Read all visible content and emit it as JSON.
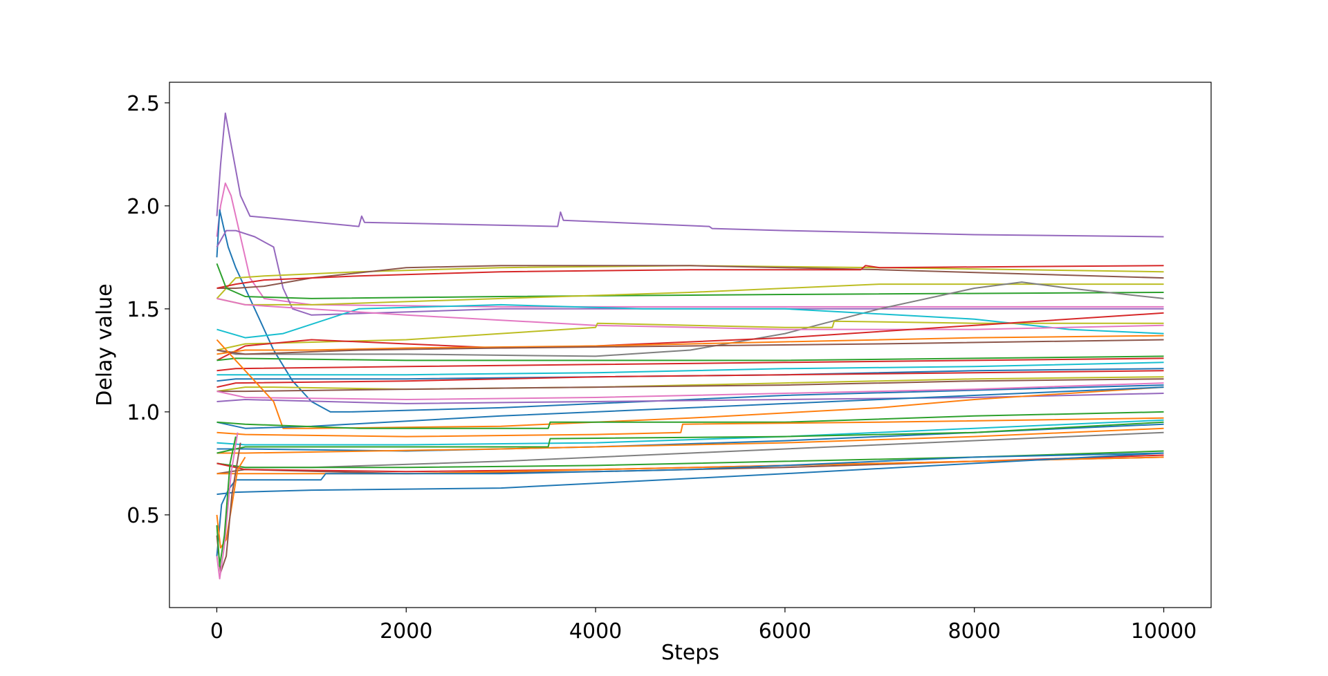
{
  "chart_data": {
    "type": "line",
    "title": "",
    "xlabel": "Steps",
    "ylabel": "Delay value",
    "xlim": [
      -500,
      10500
    ],
    "ylim": [
      0.05,
      2.6
    ],
    "x_ticks": [
      0,
      2000,
      4000,
      6000,
      8000,
      10000
    ],
    "x_tick_labels": [
      "0",
      "2000",
      "4000",
      "6000",
      "8000",
      "10000"
    ],
    "y_ticks": [
      0.5,
      1.0,
      1.5,
      2.0,
      2.5
    ],
    "y_tick_labels": [
      "0.5",
      "1.0",
      "1.5",
      "2.0",
      "2.5"
    ],
    "grid": false,
    "legend": "none",
    "palette": [
      "#1f77b4",
      "#ff7f0e",
      "#2ca02c",
      "#d62728",
      "#9467bd",
      "#8c564b",
      "#e377c2",
      "#7f7f7f",
      "#bcbd22",
      "#17becf"
    ],
    "series": [
      {
        "color": "#9467bd",
        "x": [
          0,
          40,
          90,
          150,
          250,
          350,
          1500,
          1530,
          1560,
          3600,
          3630,
          3660,
          5200,
          5230,
          6000,
          8000,
          10000
        ],
        "y": [
          1.95,
          2.2,
          2.45,
          2.3,
          2.05,
          1.95,
          1.9,
          1.95,
          1.92,
          1.9,
          1.97,
          1.93,
          1.9,
          1.89,
          1.88,
          1.86,
          1.85
        ]
      },
      {
        "color": "#e377c2",
        "x": [
          0,
          40,
          90,
          150,
          250,
          350,
          500,
          1000,
          3000,
          6000,
          10000
        ],
        "y": [
          1.85,
          2.0,
          2.11,
          2.05,
          1.85,
          1.65,
          1.55,
          1.52,
          1.51,
          1.51,
          1.51
        ]
      },
      {
        "color": "#1f77b4",
        "x": [
          0,
          30,
          70,
          120,
          200,
          300,
          450,
          600,
          800,
          1000,
          1200,
          1400,
          3000,
          6000,
          10000
        ],
        "y": [
          1.75,
          1.98,
          1.9,
          1.8,
          1.7,
          1.6,
          1.45,
          1.3,
          1.15,
          1.05,
          1.0,
          1.0,
          1.02,
          1.08,
          1.13
        ]
      },
      {
        "color": "#9467bd",
        "x": [
          0,
          100,
          200,
          400,
          600,
          700,
          800,
          1000,
          3000,
          6000,
          10000
        ],
        "y": [
          1.8,
          1.88,
          1.88,
          1.85,
          1.8,
          1.6,
          1.5,
          1.47,
          1.5,
          1.5,
          1.5
        ]
      },
      {
        "color": "#bcbd22",
        "x": [
          0,
          200,
          500,
          1500,
          3000,
          5000,
          7000,
          10000
        ],
        "y": [
          1.55,
          1.65,
          1.66,
          1.68,
          1.7,
          1.71,
          1.7,
          1.68
        ]
      },
      {
        "color": "#8c564b",
        "x": [
          0,
          200,
          500,
          1000,
          2000,
          3000,
          5000,
          7000,
          10000
        ],
        "y": [
          1.6,
          1.6,
          1.61,
          1.65,
          1.7,
          1.71,
          1.71,
          1.69,
          1.65
        ]
      },
      {
        "color": "#d62728",
        "x": [
          0,
          200,
          500,
          1500,
          3000,
          5000,
          6800,
          6850,
          7000,
          10000
        ],
        "y": [
          1.6,
          1.62,
          1.64,
          1.66,
          1.68,
          1.69,
          1.69,
          1.71,
          1.7,
          1.71
        ]
      },
      {
        "color": "#2ca02c",
        "x": [
          0,
          100,
          300,
          1000,
          3000,
          6000,
          10000
        ],
        "y": [
          1.72,
          1.6,
          1.56,
          1.55,
          1.56,
          1.57,
          1.58
        ]
      },
      {
        "color": "#bcbd22",
        "x": [
          0,
          300,
          1000,
          3000,
          5000,
          7000,
          10000
        ],
        "y": [
          1.55,
          1.52,
          1.52,
          1.55,
          1.58,
          1.62,
          1.62
        ]
      },
      {
        "color": "#7f7f7f",
        "x": [
          0,
          200,
          2000,
          4000,
          5000,
          6000,
          7000,
          8000,
          8500,
          9000,
          10000
        ],
        "y": [
          1.3,
          1.28,
          1.28,
          1.27,
          1.3,
          1.38,
          1.5,
          1.6,
          1.63,
          1.6,
          1.55
        ]
      },
      {
        "color": "#17becf",
        "x": [
          0,
          150,
          300,
          500,
          700,
          1500,
          3000,
          4500,
          6000,
          8000,
          9000,
          10000
        ],
        "y": [
          1.4,
          1.38,
          1.36,
          1.37,
          1.38,
          1.5,
          1.52,
          1.5,
          1.5,
          1.45,
          1.4,
          1.38
        ]
      },
      {
        "color": "#e377c2",
        "x": [
          0,
          300,
          2000,
          4000,
          6000,
          8000,
          10000
        ],
        "y": [
          1.55,
          1.52,
          1.47,
          1.42,
          1.4,
          1.4,
          1.42
        ]
      },
      {
        "color": "#bcbd22",
        "x": [
          0,
          300,
          2000,
          3000,
          4000,
          4020,
          6000,
          6500,
          6520,
          8000,
          10000
        ],
        "y": [
          1.3,
          1.33,
          1.35,
          1.38,
          1.41,
          1.43,
          1.41,
          1.41,
          1.44,
          1.43,
          1.43
        ]
      },
      {
        "color": "#d62728",
        "x": [
          0,
          300,
          1000,
          2000,
          3000,
          4000,
          6000,
          8000,
          10000
        ],
        "y": [
          1.25,
          1.32,
          1.35,
          1.33,
          1.31,
          1.32,
          1.36,
          1.42,
          1.48
        ]
      },
      {
        "color": "#ff7f0e",
        "x": [
          0,
          300,
          1000,
          2000,
          4000,
          6000,
          8000,
          10000
        ],
        "y": [
          1.28,
          1.3,
          1.3,
          1.31,
          1.32,
          1.34,
          1.36,
          1.37
        ]
      },
      {
        "color": "#8c564b",
        "x": [
          0,
          300,
          1500,
          3000,
          5000,
          7000,
          10000
        ],
        "y": [
          1.3,
          1.28,
          1.3,
          1.31,
          1.32,
          1.33,
          1.35
        ]
      },
      {
        "color": "#2ca02c",
        "x": [
          0,
          200,
          2000,
          4000,
          6000,
          8000,
          10000
        ],
        "y": [
          1.25,
          1.26,
          1.25,
          1.25,
          1.25,
          1.26,
          1.27
        ]
      },
      {
        "color": "#d62728",
        "x": [
          0,
          200,
          2000,
          4000,
          6000,
          8000,
          10000
        ],
        "y": [
          1.2,
          1.21,
          1.22,
          1.23,
          1.24,
          1.25,
          1.26
        ]
      },
      {
        "color": "#17becf",
        "x": [
          0,
          200,
          2000,
          4000,
          6000,
          8000,
          10000
        ],
        "y": [
          1.18,
          1.18,
          1.18,
          1.19,
          1.21,
          1.22,
          1.24
        ]
      },
      {
        "color": "#1f77b4",
        "x": [
          0,
          200,
          2000,
          4000,
          6000,
          8000,
          10000
        ],
        "y": [
          1.15,
          1.16,
          1.16,
          1.17,
          1.18,
          1.2,
          1.21
        ]
      },
      {
        "color": "#d62728",
        "x": [
          0,
          200,
          2000,
          4000,
          6000,
          8000,
          10000
        ],
        "y": [
          1.12,
          1.14,
          1.15,
          1.17,
          1.18,
          1.19,
          1.2
        ]
      },
      {
        "color": "#bcbd22",
        "x": [
          0,
          300,
          600,
          2000,
          4000,
          6000,
          8000,
          10000
        ],
        "y": [
          1.1,
          1.12,
          1.12,
          1.11,
          1.12,
          1.14,
          1.16,
          1.17
        ]
      },
      {
        "color": "#8c564b",
        "x": [
          0,
          300,
          2000,
          4000,
          6000,
          8000,
          10000
        ],
        "y": [
          1.1,
          1.1,
          1.11,
          1.12,
          1.13,
          1.15,
          1.16
        ]
      },
      {
        "color": "#e377c2",
        "x": [
          0,
          300,
          2000,
          4000,
          6000,
          8000,
          10000
        ],
        "y": [
          1.1,
          1.07,
          1.06,
          1.07,
          1.09,
          1.11,
          1.14
        ]
      },
      {
        "color": "#9467bd",
        "x": [
          0,
          300,
          2000,
          4000,
          6000,
          8000,
          10000
        ],
        "y": [
          1.05,
          1.06,
          1.04,
          1.05,
          1.06,
          1.07,
          1.09
        ]
      },
      {
        "color": "#ff7f0e",
        "x": [
          0,
          200,
          400,
          600,
          700,
          1000,
          3000,
          5000,
          7000,
          8000,
          10000
        ],
        "y": [
          1.35,
          1.25,
          1.15,
          1.05,
          0.92,
          0.92,
          0.93,
          0.97,
          1.02,
          1.06,
          1.12
        ]
      },
      {
        "color": "#1f77b4",
        "x": [
          0,
          300,
          1000,
          3000,
          5000,
          7000,
          9000,
          10000
        ],
        "y": [
          0.95,
          0.92,
          0.93,
          0.98,
          1.02,
          1.06,
          1.1,
          1.12
        ]
      },
      {
        "color": "#2ca02c",
        "x": [
          0,
          300,
          1500,
          3500,
          3520,
          6000,
          8000,
          10000
        ],
        "y": [
          0.95,
          0.94,
          0.92,
          0.92,
          0.95,
          0.95,
          0.98,
          1.0
        ]
      },
      {
        "color": "#ff7f0e",
        "x": [
          0,
          300,
          2000,
          4000,
          4900,
          4920,
          7000,
          10000
        ],
        "y": [
          0.9,
          0.89,
          0.88,
          0.89,
          0.9,
          0.94,
          0.95,
          0.97
        ]
      },
      {
        "color": "#17becf",
        "x": [
          0,
          300,
          2000,
          4000,
          6000,
          8000,
          10000
        ],
        "y": [
          0.85,
          0.84,
          0.84,
          0.85,
          0.88,
          0.92,
          0.96
        ]
      },
      {
        "color": "#1f77b4",
        "x": [
          0,
          300,
          2000,
          4000,
          6000,
          8000,
          10000
        ],
        "y": [
          0.82,
          0.82,
          0.81,
          0.83,
          0.86,
          0.9,
          0.94
        ]
      },
      {
        "color": "#ff7f0e",
        "x": [
          0,
          300,
          3000,
          6000,
          8000,
          10000
        ],
        "y": [
          0.8,
          0.8,
          0.82,
          0.85,
          0.88,
          0.92
        ]
      },
      {
        "color": "#2ca02c",
        "x": [
          0,
          300,
          3500,
          3520,
          6000,
          8000,
          10000
        ],
        "y": [
          0.8,
          0.83,
          0.83,
          0.87,
          0.88,
          0.9,
          0.95
        ]
      },
      {
        "color": "#7f7f7f",
        "x": [
          0,
          300,
          1000,
          3000,
          5000,
          7000,
          9000,
          10000
        ],
        "y": [
          0.75,
          0.73,
          0.73,
          0.76,
          0.8,
          0.84,
          0.88,
          0.9
        ]
      },
      {
        "color": "#2ca02c",
        "x": [
          0,
          300,
          2000,
          4000,
          6000,
          8000,
          10000
        ],
        "y": [
          0.75,
          0.73,
          0.73,
          0.74,
          0.76,
          0.78,
          0.81
        ]
      },
      {
        "color": "#8c564b",
        "x": [
          0,
          300,
          2000,
          4000,
          6000,
          8000,
          10000
        ],
        "y": [
          0.7,
          0.72,
          0.7,
          0.71,
          0.73,
          0.76,
          0.78
        ]
      },
      {
        "color": "#d62728",
        "x": [
          0,
          300,
          2000,
          4000,
          6000,
          8000,
          10000
        ],
        "y": [
          0.75,
          0.72,
          0.71,
          0.72,
          0.74,
          0.76,
          0.79
        ]
      },
      {
        "color": "#ff7f0e",
        "x": [
          0,
          300,
          2000,
          4000,
          6000,
          8000,
          10000
        ],
        "y": [
          0.7,
          0.7,
          0.7,
          0.72,
          0.74,
          0.76,
          0.78
        ]
      },
      {
        "color": "#1f77b4",
        "x": [
          0,
          50,
          120,
          200,
          300,
          1100,
          1150,
          3000,
          5000,
          7000,
          8000,
          10000
        ],
        "y": [
          0.3,
          0.55,
          0.62,
          0.67,
          0.67,
          0.67,
          0.7,
          0.7,
          0.72,
          0.76,
          0.78,
          0.8
        ]
      },
      {
        "color": "#1f77b4",
        "x": [
          0,
          200,
          1000,
          3000,
          6000,
          10000
        ],
        "y": [
          0.6,
          0.61,
          0.62,
          0.63,
          0.7,
          0.8
        ]
      },
      {
        "color": "#ff7f0e",
        "x": [
          0,
          40,
          100,
          160,
          220,
          300
        ],
        "y": [
          0.5,
          0.34,
          0.38,
          0.55,
          0.72,
          0.78
        ]
      },
      {
        "color": "#8c564b",
        "x": [
          0,
          40,
          100,
          160,
          250
        ],
        "y": [
          0.4,
          0.22,
          0.3,
          0.6,
          0.85
        ]
      },
      {
        "color": "#e377c2",
        "x": [
          0,
          30,
          80,
          150,
          220
        ],
        "y": [
          0.3,
          0.19,
          0.35,
          0.7,
          0.9
        ]
      },
      {
        "color": "#2ca02c",
        "x": [
          0,
          30,
          80,
          140,
          200
        ],
        "y": [
          0.45,
          0.25,
          0.4,
          0.75,
          0.88
        ]
      }
    ]
  }
}
